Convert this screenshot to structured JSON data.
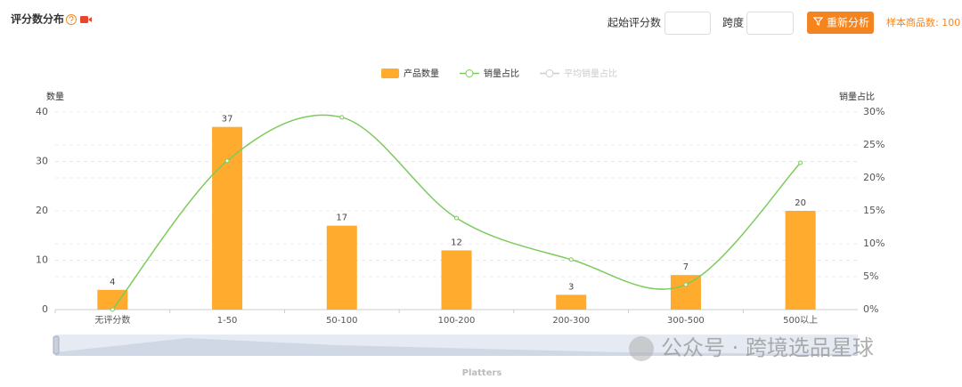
{
  "header": {
    "title": "评分数分布",
    "start_label": "起始评分数",
    "span_label": "跨度",
    "button": "重新分析",
    "sample_count": "样本商品数: 100"
  },
  "chart_data": {
    "type": "bar",
    "categories": [
      "无评分数",
      "1-50",
      "50-100",
      "100-200",
      "200-300",
      "300-500",
      "500以上"
    ],
    "series": [
      {
        "name": "产品数量",
        "type": "bar",
        "color": "#ffab2e",
        "values": [
          4,
          37,
          17,
          12,
          3,
          7,
          20
        ]
      },
      {
        "name": "销量占比",
        "type": "line",
        "axis": "y2",
        "color": "#7ccb5c",
        "values": [
          0,
          22.6,
          29.2,
          13.9,
          7.6,
          3.8,
          22.3
        ]
      },
      {
        "name": "平均销量占比",
        "type": "line",
        "color": "#cccccc",
        "hidden": true
      }
    ],
    "ylabel": "数量",
    "y2label": "销量占比",
    "ylim": [
      0,
      40
    ],
    "yticks": [
      0,
      10,
      20,
      30,
      40
    ],
    "y2lim": [
      0,
      30
    ],
    "y2ticks": [
      {
        "value": 0,
        "label": "0%"
      },
      {
        "value": 5,
        "label": "5%"
      },
      {
        "value": 10,
        "label": "10%"
      },
      {
        "value": 15,
        "label": "15%"
      },
      {
        "value": 20,
        "label": "20%"
      },
      {
        "value": 25,
        "label": "25%"
      },
      {
        "value": 30,
        "label": "30%"
      }
    ],
    "grid": true,
    "legend": "top",
    "zoom_label": "Platters"
  },
  "watermark": "公众号 · 跨境选品星球"
}
